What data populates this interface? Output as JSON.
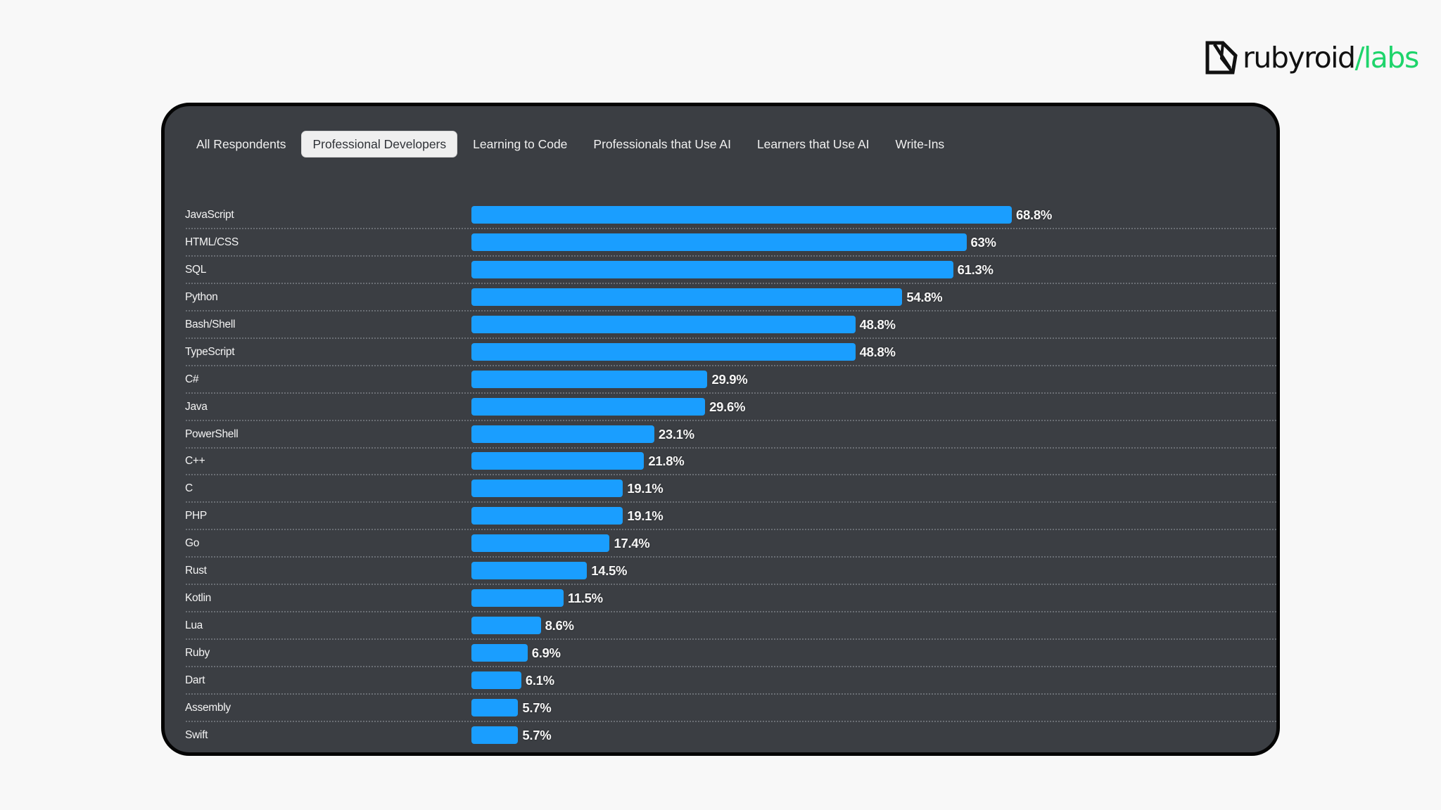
{
  "logo": {
    "icon": "rubyroid-gem-icon",
    "text_main": "rubyroid",
    "text_accent": "/labs",
    "accent_color": "#1ed46b"
  },
  "tabs": [
    {
      "label": "All Respondents",
      "active": false
    },
    {
      "label": "Professional Developers",
      "active": true
    },
    {
      "label": "Learning to Code",
      "active": false
    },
    {
      "label": "Professionals that Use AI",
      "active": false
    },
    {
      "label": "Learners that Use AI",
      "active": false
    },
    {
      "label": "Write-Ins",
      "active": false
    }
  ],
  "colors": {
    "bar": "#1a9eff",
    "panel": "#3b3e43"
  },
  "chart_data": {
    "type": "bar",
    "orientation": "horizontal",
    "title": "",
    "xlabel": "",
    "ylabel": "",
    "xlim": [
      0,
      100
    ],
    "grid": false,
    "value_suffix": "%",
    "categories": [
      "JavaScript",
      "HTML/CSS",
      "SQL",
      "Python",
      "Bash/Shell",
      "TypeScript",
      "C#",
      "Java",
      "PowerShell",
      "C++",
      "C",
      "PHP",
      "Go",
      "Rust",
      "Kotlin",
      "Lua",
      "Ruby",
      "Dart",
      "Assembly",
      "Swift"
    ],
    "values": [
      68.8,
      63,
      61.3,
      54.8,
      48.8,
      48.8,
      29.9,
      29.6,
      23.1,
      21.8,
      19.1,
      19.1,
      17.4,
      14.5,
      11.5,
      8.6,
      6.9,
      6.1,
      5.7,
      5.7
    ],
    "labels": [
      "68.8%",
      "63%",
      "61.3%",
      "54.8%",
      "48.8%",
      "48.8%",
      "29.9%",
      "29.6%",
      "23.1%",
      "21.8%",
      "19.1%",
      "19.1%",
      "17.4%",
      "14.5%",
      "11.5%",
      "8.6%",
      "6.9%",
      "6.1%",
      "5.7%",
      "5.7%"
    ]
  }
}
